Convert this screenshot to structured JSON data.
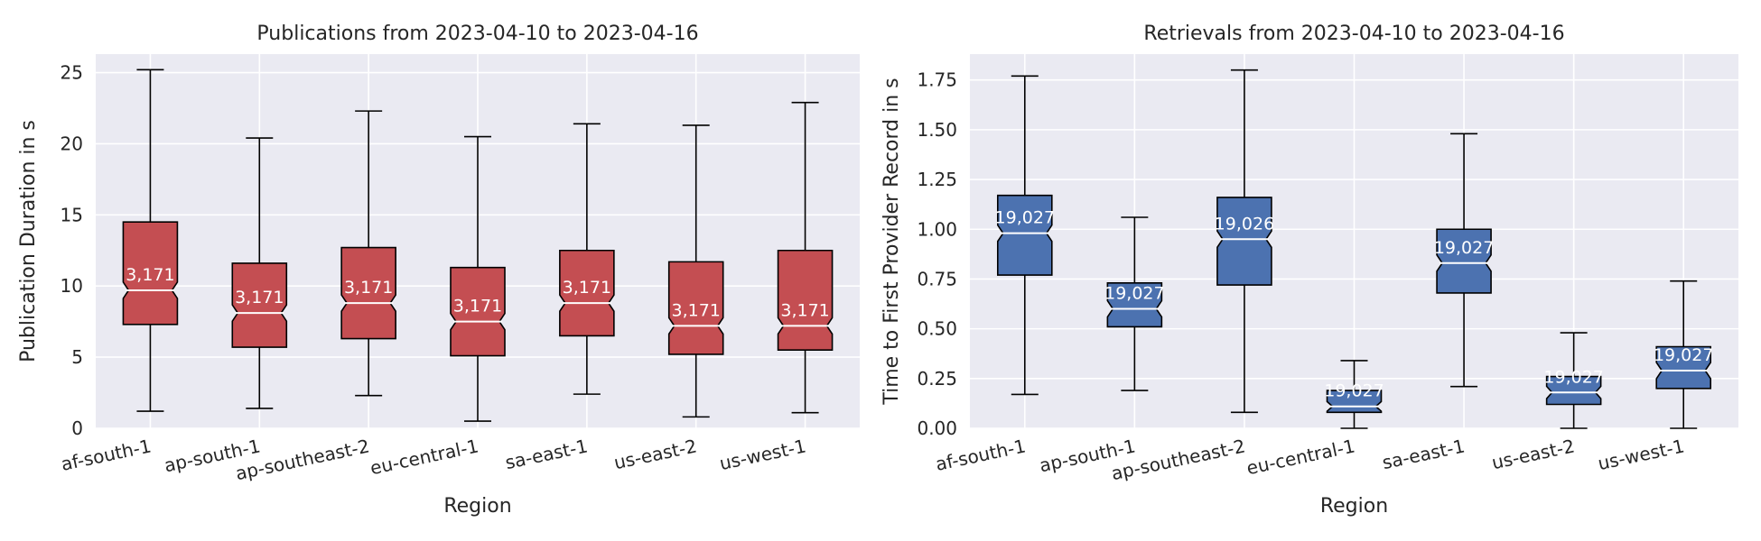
{
  "chart_data": [
    {
      "type": "boxplot",
      "title": "Publications from 2023-04-10 to 2023-04-16",
      "xlabel": "Region",
      "ylabel": "Publication Duration in s",
      "ylim": [
        0,
        26.3
      ],
      "yticks": [
        0,
        5,
        10,
        15,
        20,
        25
      ],
      "ytick_labels": [
        "0",
        "5",
        "10",
        "15",
        "20",
        "25"
      ],
      "grid": true,
      "color": "#c44e52",
      "categories": [
        "af-south-1",
        "ap-south-1",
        "ap-southeast-2",
        "eu-central-1",
        "sa-east-1",
        "us-east-2",
        "us-west-1"
      ],
      "boxes": [
        {
          "whisker_low": 1.2,
          "q1": 7.3,
          "median": 9.7,
          "q3": 14.5,
          "whisker_high": 25.2,
          "count": "3,171"
        },
        {
          "whisker_low": 1.4,
          "q1": 5.7,
          "median": 8.1,
          "q3": 11.6,
          "whisker_high": 20.4,
          "count": "3,171"
        },
        {
          "whisker_low": 2.3,
          "q1": 6.3,
          "median": 8.8,
          "q3": 12.7,
          "whisker_high": 22.3,
          "count": "3,171"
        },
        {
          "whisker_low": 0.5,
          "q1": 5.1,
          "median": 7.5,
          "q3": 11.3,
          "whisker_high": 20.5,
          "count": "3,171"
        },
        {
          "whisker_low": 2.4,
          "q1": 6.5,
          "median": 8.8,
          "q3": 12.5,
          "whisker_high": 21.4,
          "count": "3,171"
        },
        {
          "whisker_low": 0.8,
          "q1": 5.2,
          "median": 7.2,
          "q3": 11.7,
          "whisker_high": 21.3,
          "count": "3,171"
        },
        {
          "whisker_low": 1.1,
          "q1": 5.5,
          "median": 7.2,
          "q3": 12.5,
          "whisker_high": 22.9,
          "count": "3,171"
        }
      ]
    },
    {
      "type": "boxplot",
      "title": "Retrievals from 2023-04-10 to 2023-04-16",
      "xlabel": "Region",
      "ylabel": "Time to First Provider Record in s",
      "ylim": [
        0,
        1.88
      ],
      "yticks": [
        0,
        0.25,
        0.5,
        0.75,
        1.0,
        1.25,
        1.5,
        1.75
      ],
      "ytick_labels": [
        "0.00",
        "0.25",
        "0.50",
        "0.75",
        "1.00",
        "1.25",
        "1.50",
        "1.75"
      ],
      "grid": true,
      "color": "#4c72b0",
      "categories": [
        "af-south-1",
        "ap-south-1",
        "ap-southeast-2",
        "eu-central-1",
        "sa-east-1",
        "us-east-2",
        "us-west-1"
      ],
      "boxes": [
        {
          "whisker_low": 0.17,
          "q1": 0.77,
          "median": 0.98,
          "q3": 1.17,
          "whisker_high": 1.77,
          "count": "19,027"
        },
        {
          "whisker_low": 0.19,
          "q1": 0.51,
          "median": 0.6,
          "q3": 0.73,
          "whisker_high": 1.06,
          "count": "19,027"
        },
        {
          "whisker_low": 0.08,
          "q1": 0.72,
          "median": 0.95,
          "q3": 1.16,
          "whisker_high": 1.8,
          "count": "19,026"
        },
        {
          "whisker_low": 0.0,
          "q1": 0.08,
          "median": 0.11,
          "q3": 0.19,
          "whisker_high": 0.34,
          "count": "19,027"
        },
        {
          "whisker_low": 0.21,
          "q1": 0.68,
          "median": 0.83,
          "q3": 1.0,
          "whisker_high": 1.48,
          "count": "19,027"
        },
        {
          "whisker_low": 0.0,
          "q1": 0.12,
          "median": 0.18,
          "q3": 0.26,
          "whisker_high": 0.48,
          "count": "19,027"
        },
        {
          "whisker_low": 0.0,
          "q1": 0.2,
          "median": 0.29,
          "q3": 0.41,
          "whisker_high": 0.74,
          "count": "19,027"
        }
      ]
    }
  ]
}
